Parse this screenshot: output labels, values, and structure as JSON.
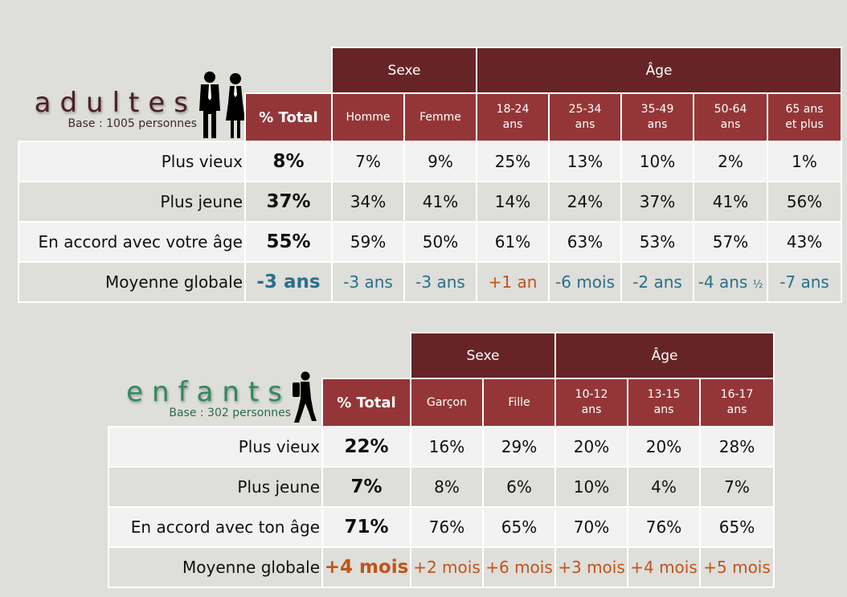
{
  "adults": {
    "title": "adultes",
    "base": "Base : 1005 personnes",
    "group_headers": {
      "sexe": "Sexe",
      "age": "Âge"
    },
    "total_header": "% Total",
    "sub_headers": [
      "Homme",
      "Femme",
      "18-24 ans",
      "25-34 ans",
      "35-49 ans",
      "50-64 ans",
      "65 ans et plus"
    ],
    "rows": [
      {
        "label": "Plus vieux",
        "total": "8%",
        "values": [
          "7%",
          "9%",
          "25%",
          "13%",
          "10%",
          "2%",
          "1%"
        ]
      },
      {
        "label": "Plus jeune",
        "total": "37%",
        "values": [
          "34%",
          "41%",
          "14%",
          "24%",
          "37%",
          "41%",
          "56%"
        ]
      },
      {
        "label": "En accord avec votre âge",
        "total": "55%",
        "values": [
          "59%",
          "50%",
          "61%",
          "63%",
          "53%",
          "57%",
          "43%"
        ]
      },
      {
        "label": "Moyenne globale",
        "total": "-3 ans",
        "values": [
          "-3 ans",
          "-3 ans",
          "+1 an",
          "-6 mois",
          "-2 ans",
          "-4 ans",
          "-7 ans"
        ]
      }
    ],
    "half_suffix": "½"
  },
  "kids": {
    "title": "enfants",
    "base": "Base : 302 personnes",
    "group_headers": {
      "sexe": "Sexe",
      "age": "Âge"
    },
    "total_header": "% Total",
    "sub_headers": [
      "Garçon",
      "Fille",
      "10-12 ans",
      "13-15 ans",
      "16-17 ans"
    ],
    "rows": [
      {
        "label": "Plus vieux",
        "total": "22%",
        "values": [
          "16%",
          "29%",
          "20%",
          "20%",
          "28%"
        ]
      },
      {
        "label": "Plus jeune",
        "total": "7%",
        "values": [
          "8%",
          "6%",
          "10%",
          "4%",
          "7%"
        ]
      },
      {
        "label": "En accord avec ton âge",
        "total": "71%",
        "values": [
          "76%",
          "65%",
          "70%",
          "76%",
          "65%"
        ]
      },
      {
        "label": "Moyenne globale",
        "total": "+4 mois",
        "values": [
          "+2 mois",
          "+6 mois",
          "+3 mois",
          "+4 mois",
          "+5 mois"
        ]
      }
    ]
  },
  "colors": {
    "header_dark": "#662426",
    "header_light": "#943638",
    "negative_blue": "#2b6f8a",
    "positive_orange": "#c0541a"
  },
  "icons": [
    "couple-icon",
    "hiker-child-icon"
  ]
}
